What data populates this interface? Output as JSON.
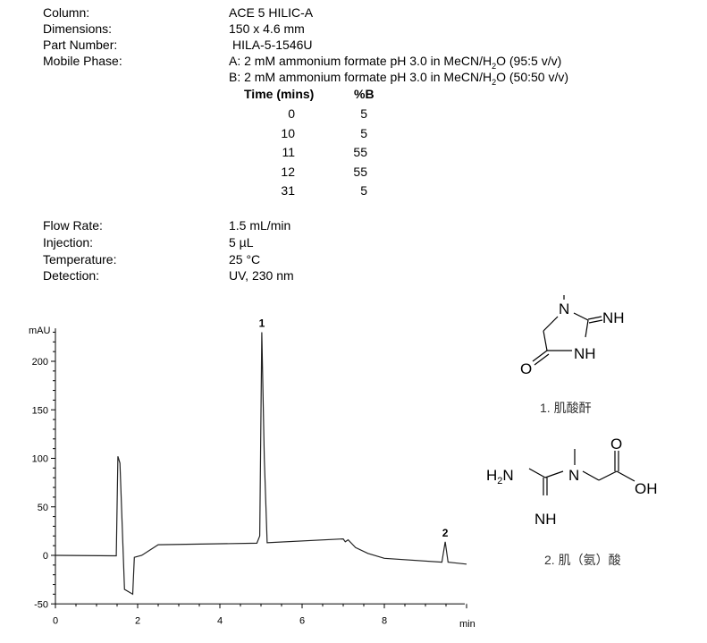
{
  "method": {
    "column": {
      "label": "Column:",
      "value": "ACE 5 HILIC-A"
    },
    "dimensions": {
      "label": "Dimensions:",
      "value": "150 x 4.6 mm"
    },
    "part_number": {
      "label": "Part Number:",
      "value": "HILA-5-1546U"
    },
    "mobile_phase": {
      "label": "Mobile Phase:",
      "a_pre": "A: 2 mM ammonium formate pH 3.0 in MeCN/H",
      "a_sub": "2",
      "a_post": "O (95:5 v/v)",
      "b_pre": "B: 2 mM ammonium formate pH 3.0 in MeCN/H",
      "b_sub": "2",
      "b_post": "O (50:50 v/v)"
    },
    "gradient": {
      "headers": [
        "Time (mins)",
        "%B"
      ],
      "rows": [
        [
          "0",
          "5"
        ],
        [
          "10",
          "5"
        ],
        [
          "11",
          "55"
        ],
        [
          "12",
          "55"
        ],
        [
          "31",
          "5"
        ]
      ]
    },
    "flow_rate": {
      "label": "Flow Rate:",
      "value": "1.5 mL/min"
    },
    "injection": {
      "label": "Injection:",
      "value": "5 µL"
    },
    "temperature": {
      "label": "Temperature:",
      "value": "25 °C"
    },
    "detection": {
      "label": "Detection:",
      "value": "UV, 230 nm"
    }
  },
  "chart_data": {
    "type": "line",
    "ylabel": "mAU",
    "xlabel": "min",
    "xlim": [
      0,
      10
    ],
    "ylim": [
      -50,
      234
    ],
    "xticks": [
      "0",
      "2",
      "4",
      "6",
      "8"
    ],
    "yticks": [
      "-50",
      "0",
      "50",
      "100",
      "150",
      "200"
    ],
    "grid": false,
    "series": [
      {
        "x": [
          0,
          1.48,
          1.52,
          1.57,
          1.68,
          1.88,
          1.92,
          2.1,
          2.5,
          4.9,
          4.97,
          5.02,
          5.08,
          5.15,
          7.0,
          7.05,
          7.12,
          7.3,
          7.6,
          8.0,
          9.4,
          9.48,
          9.55,
          10.0
        ],
        "y": [
          0,
          -0.5,
          102,
          95,
          -35,
          -40,
          -2,
          0,
          11,
          12.5,
          20,
          230,
          100,
          13,
          17,
          14,
          16,
          8,
          2,
          -3,
          -7,
          14,
          -7,
          -9
        ]
      }
    ],
    "annotations": [
      {
        "text": "1",
        "x": 5.02,
        "y": 230
      },
      {
        "text": "2",
        "x": 9.48,
        "y": 14
      }
    ],
    "line_color": "#222222"
  },
  "compounds": [
    {
      "caption": "1. 肌酸酐",
      "atoms": [
        "N",
        "NH",
        "NH",
        "O"
      ]
    },
    {
      "caption": "2. 肌（氨）酸",
      "atoms": [
        "H",
        "2",
        "N",
        "N",
        "O",
        "OH",
        "NH"
      ]
    }
  ]
}
